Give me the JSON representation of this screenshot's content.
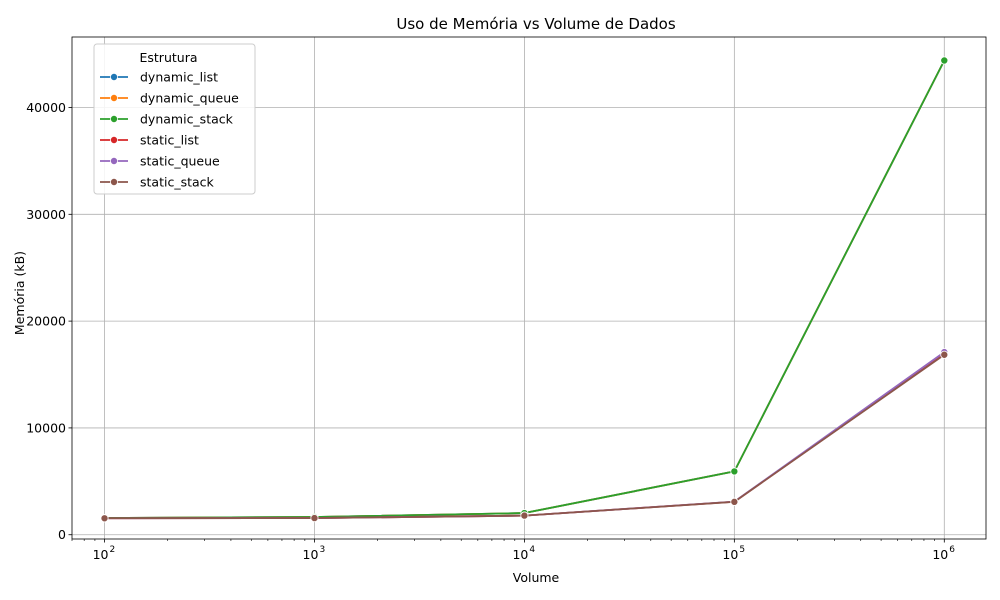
{
  "chart_data": {
    "type": "line",
    "title": "Uso de Memória vs Volume de Dados",
    "xlabel": "Volume",
    "ylabel": "Memória (kB)",
    "xscale": "log",
    "xlim": [
      70,
      1580000
    ],
    "ylim": [
      -400,
      46600
    ],
    "grid": true,
    "legend": {
      "title": "Estrutura",
      "placement": "top-left"
    },
    "x": [
      100,
      1000,
      10000,
      100000,
      1000000
    ],
    "x_tick_labels": [
      {
        "value": 100,
        "base": "10",
        "exp": "2"
      },
      {
        "value": 1000,
        "base": "10",
        "exp": "3"
      },
      {
        "value": 10000,
        "base": "10",
        "exp": "4"
      },
      {
        "value": 100000,
        "base": "10",
        "exp": "5"
      },
      {
        "value": 1000000,
        "base": "10",
        "exp": "6"
      }
    ],
    "y_ticks": [
      0,
      10000,
      20000,
      30000,
      40000
    ],
    "series": [
      {
        "name": "dynamic_list",
        "color": "#1f77b4",
        "values": [
          1570,
          1660,
          2030,
          5930,
          44400
        ]
      },
      {
        "name": "dynamic_queue",
        "color": "#ff7f0e",
        "values": [
          1570,
          1660,
          2030,
          5930,
          44400
        ]
      },
      {
        "name": "dynamic_stack",
        "color": "#2ca02c",
        "values": [
          1570,
          1660,
          2030,
          5930,
          44400
        ]
      },
      {
        "name": "static_list",
        "color": "#d62728",
        "values": [
          1540,
          1560,
          1790,
          3090,
          16900
        ]
      },
      {
        "name": "static_queue",
        "color": "#9467bd",
        "values": [
          1540,
          1560,
          1790,
          3100,
          17100
        ]
      },
      {
        "name": "static_stack",
        "color": "#8c564b",
        "values": [
          1540,
          1560,
          1790,
          3080,
          16850
        ]
      }
    ]
  }
}
